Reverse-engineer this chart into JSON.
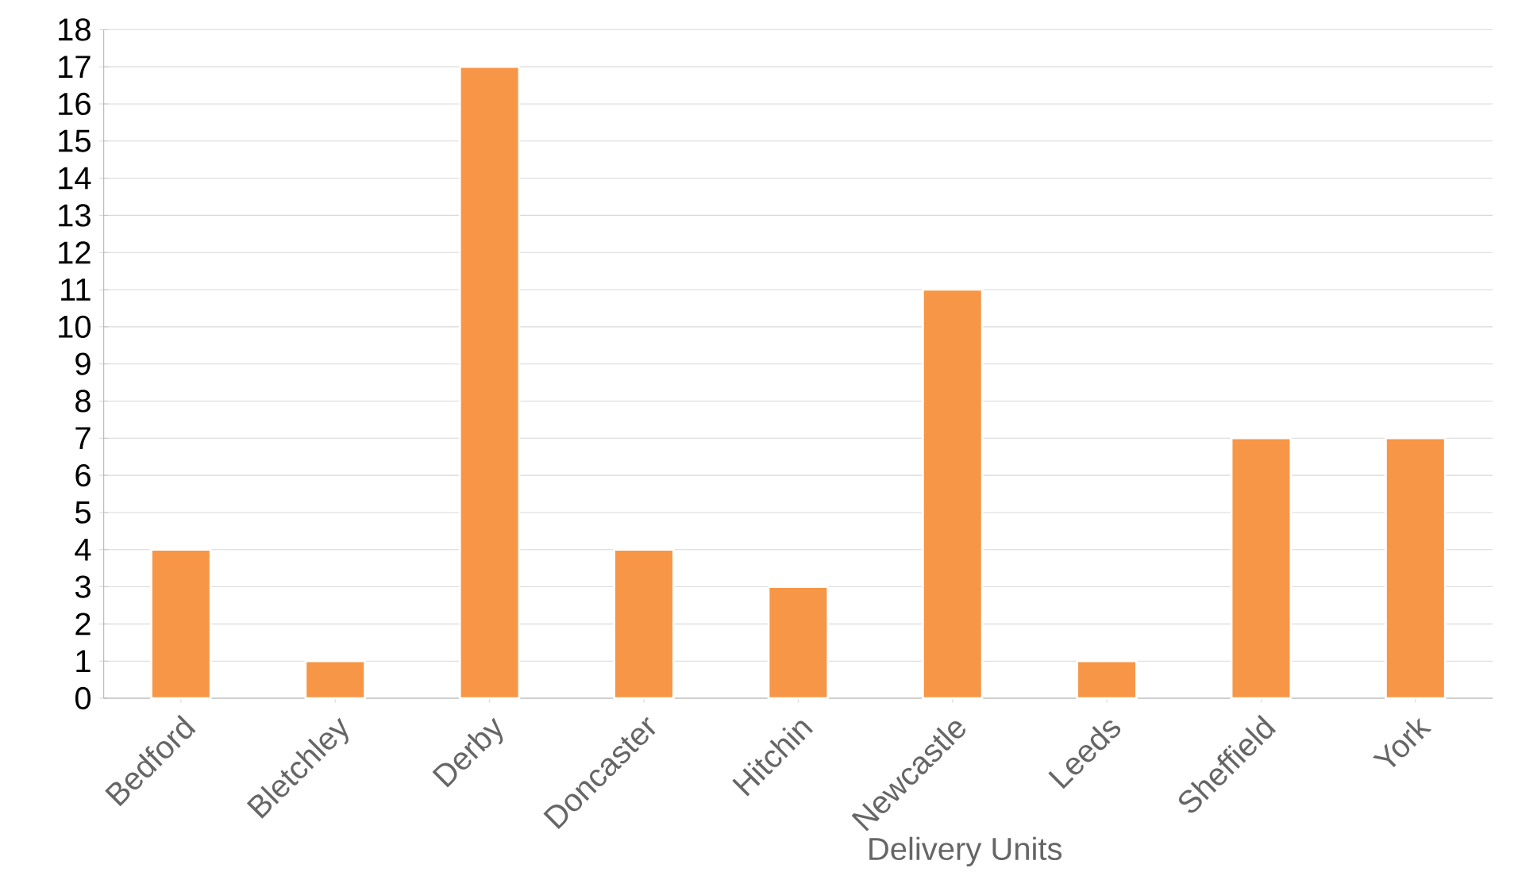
{
  "chart_data": {
    "type": "bar",
    "xlabel": "Delivery Units",
    "categories": [
      "Bedford",
      "Bletchley",
      "Derby",
      "Doncaster",
      "Hitchin",
      "Newcastle",
      "Leeds",
      "Sheffield",
      "York"
    ],
    "values": [
      4,
      1,
      17,
      4,
      3,
      11,
      1,
      7,
      7
    ],
    "color": "#f79646",
    "ylim": [
      0,
      18
    ],
    "yticks": [
      0,
      1,
      2,
      3,
      4,
      5,
      6,
      7,
      8,
      9,
      10,
      11,
      12,
      13,
      14,
      15,
      16,
      17,
      18
    ],
    "grid": "y"
  }
}
